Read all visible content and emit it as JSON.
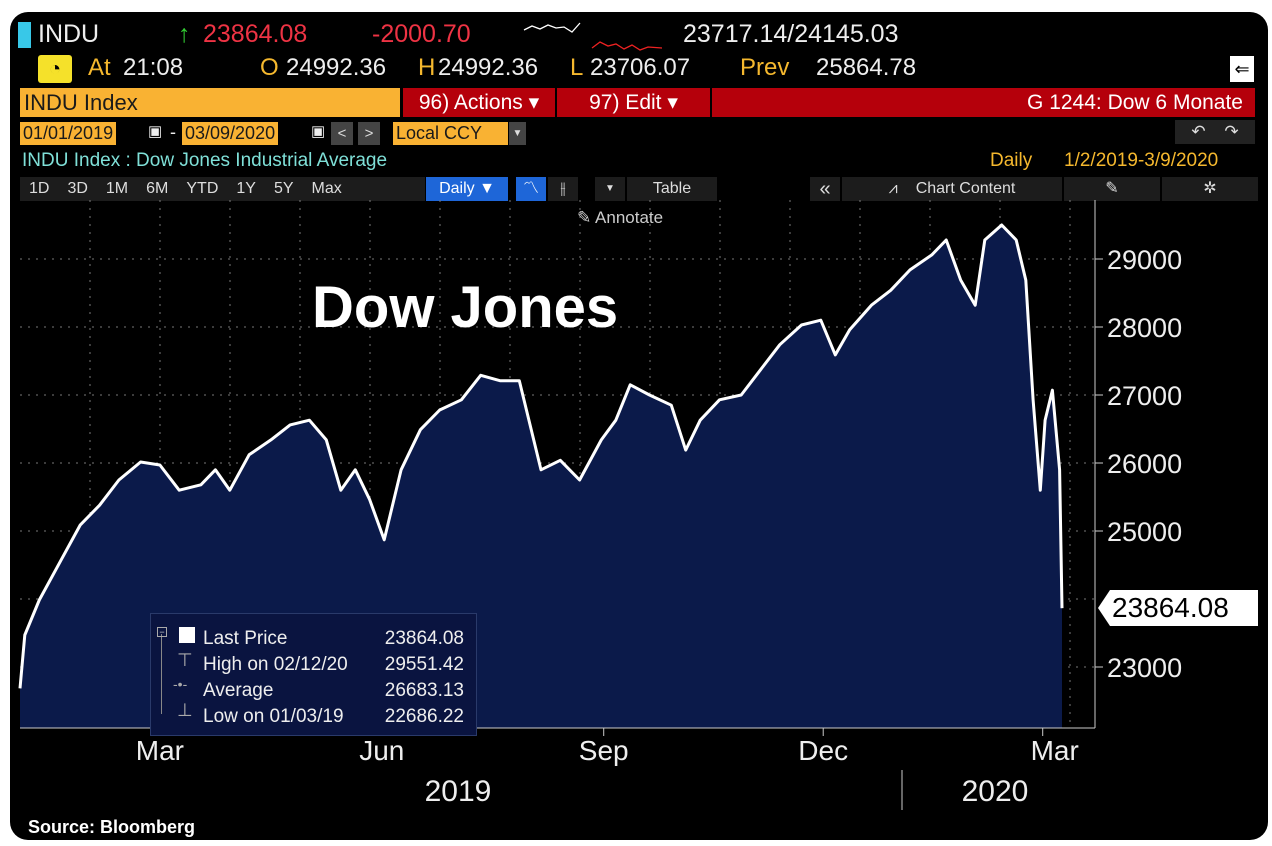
{
  "header": {
    "ticker": "INDU",
    "last": "23864.08",
    "change": "-2000.70",
    "bid_ask": "23717.14/24145.03",
    "at_label": "At",
    "time": "21:08",
    "o_label": "O",
    "open": "24992.36",
    "h_label": "H",
    "high": "24992.36",
    "l_label": "L",
    "low": "23706.07",
    "prev_label": "Prev",
    "prev": "25864.78"
  },
  "security_field": "INDU Index",
  "actions_label": "96) Actions ▾",
  "edit_label": "97) Edit ▾",
  "function_title": "G 1244: Dow 6 Monate",
  "start_date": "01/01/2019",
  "end_date": "03/09/2020",
  "currency": "Local CCY",
  "description": "INDU Index : Dow Jones Industrial Average",
  "frequency": "Daily",
  "range": "1/2/2019-3/9/2020",
  "toolbar": {
    "periods": [
      "1D",
      "3D",
      "1M",
      "6M",
      "YTD",
      "1Y",
      "5Y",
      "Max"
    ],
    "daily": "Daily ▼",
    "table": "Table",
    "chart_content": "Chart Content",
    "annotate": "Annotate"
  },
  "source": "Source: Bloomberg",
  "chart_data": {
    "type": "area",
    "title": "Dow Jones",
    "ylim": [
      22200,
      29900
    ],
    "yticks": [
      "29000",
      "28000",
      "27000",
      "26000",
      "25000",
      "23000"
    ],
    "xticks": [
      "Mar",
      "Jun",
      "Sep",
      "Dec",
      "Mar"
    ],
    "years": [
      "2019",
      "2020"
    ],
    "last_price_label": "23864.08",
    "legend": [
      {
        "label": "Last Price",
        "value": "23864.08"
      },
      {
        "label": "High on 02/12/20",
        "value": "29551.42"
      },
      {
        "label": "Average",
        "value": "26683.13"
      },
      {
        "label": "Low on 01/03/19",
        "value": "22686.22"
      }
    ],
    "series": [
      [
        "2019-01-02",
        22686
      ],
      [
        "2019-01-04",
        23470
      ],
      [
        "2019-01-10",
        23985
      ],
      [
        "2019-01-19",
        24570
      ],
      [
        "2019-01-27",
        25090
      ],
      [
        "2019-02-04",
        25380
      ],
      [
        "2019-02-12",
        25750
      ],
      [
        "2019-02-21",
        26015
      ],
      [
        "2019-03-01",
        25970
      ],
      [
        "2019-03-09",
        25600
      ],
      [
        "2019-03-18",
        25680
      ],
      [
        "2019-03-24",
        25900
      ],
      [
        "2019-03-30",
        25600
      ],
      [
        "2019-04-07",
        26120
      ],
      [
        "2019-04-16",
        26340
      ],
      [
        "2019-04-24",
        26560
      ],
      [
        "2019-05-02",
        26630
      ],
      [
        "2019-05-09",
        26340
      ],
      [
        "2019-05-15",
        25600
      ],
      [
        "2019-05-21",
        25900
      ],
      [
        "2019-05-27",
        25460
      ],
      [
        "2019-06-02",
        24870
      ],
      [
        "2019-06-09",
        25900
      ],
      [
        "2019-06-17",
        26490
      ],
      [
        "2019-06-25",
        26780
      ],
      [
        "2019-07-04",
        26930
      ],
      [
        "2019-07-12",
        27290
      ],
      [
        "2019-07-20",
        27210
      ],
      [
        "2019-07-28",
        27210
      ],
      [
        "2019-08-06",
        25900
      ],
      [
        "2019-08-14",
        26040
      ],
      [
        "2019-08-22",
        25750
      ],
      [
        "2019-08-31",
        26340
      ],
      [
        "2019-09-06",
        26630
      ],
      [
        "2019-09-12",
        27150
      ],
      [
        "2019-09-20",
        27000
      ],
      [
        "2019-09-29",
        26850
      ],
      [
        "2019-10-05",
        26190
      ],
      [
        "2019-10-11",
        26630
      ],
      [
        "2019-10-19",
        26930
      ],
      [
        "2019-10-28",
        27000
      ],
      [
        "2019-11-05",
        27370
      ],
      [
        "2019-11-13",
        27740
      ],
      [
        "2019-11-22",
        28030
      ],
      [
        "2019-11-30",
        28100
      ],
      [
        "2019-12-06",
        27590
      ],
      [
        "2019-12-12",
        27960
      ],
      [
        "2019-12-21",
        28320
      ],
      [
        "2019-12-29",
        28540
      ],
      [
        "2020-01-06",
        28840
      ],
      [
        "2020-01-15",
        29060
      ],
      [
        "2020-01-21",
        29280
      ],
      [
        "2020-01-27",
        28690
      ],
      [
        "2020-02-02",
        28320
      ],
      [
        "2020-02-06",
        29280
      ],
      [
        "2020-02-13",
        29500
      ],
      [
        "2020-02-19",
        29280
      ],
      [
        "2020-02-23",
        28690
      ],
      [
        "2020-02-26",
        26930
      ],
      [
        "2020-02-29",
        25600
      ],
      [
        "2020-03-02",
        26630
      ],
      [
        "2020-03-05",
        27070
      ],
      [
        "2020-03-08",
        25900
      ],
      [
        "2020-03-09",
        23864
      ]
    ]
  }
}
